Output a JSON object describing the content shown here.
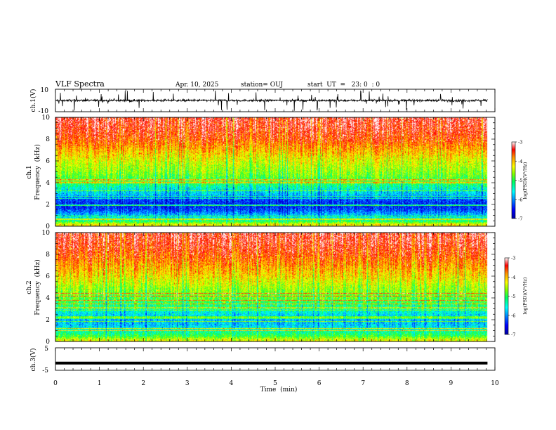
{
  "header": {
    "title": "VLF Spectra",
    "date": "Apr. 10, 2025",
    "station": "station= OUJ",
    "start": "start  UT  =   23: 0  : 0"
  },
  "chart_data": [
    {
      "type": "line",
      "name": "ch1-waveform",
      "ylabel": "ch.1(V)",
      "ylim": [
        -10,
        10
      ],
      "y_ticks": [
        "10",
        "-10"
      ],
      "baseline": 0,
      "x_range": [
        0,
        9.83
      ]
    },
    {
      "type": "heatmap",
      "name": "ch1-spectrogram",
      "ylabel_line1": "ch.1",
      "ylabel_line2": "Frequency  (kHz)",
      "ylim": [
        0,
        10
      ],
      "y_ticks": [
        "0",
        "2",
        "4",
        "6",
        "8",
        "10"
      ],
      "x_range": [
        0,
        9.83
      ],
      "approx_log_psd_by_freq_khz": [
        {
          "f": 0.2,
          "v": -4.3
        },
        {
          "f": 0.5,
          "v": -5.2
        },
        {
          "f": 1.0,
          "v": -5.8
        },
        {
          "f": 1.5,
          "v": -6.3
        },
        {
          "f": 2.0,
          "v": -6.5
        },
        {
          "f": 2.5,
          "v": -6.3
        },
        {
          "f": 3.0,
          "v": -5.8
        },
        {
          "f": 3.5,
          "v": -5.5
        },
        {
          "f": 4.0,
          "v": -5.1
        },
        {
          "f": 5.0,
          "v": -4.7
        },
        {
          "f": 6.0,
          "v": -4.4
        },
        {
          "f": 7.0,
          "v": -4.0
        },
        {
          "f": 8.0,
          "v": -3.6
        },
        {
          "f": 9.0,
          "v": -3.4
        },
        {
          "f": 10.0,
          "v": -3.3
        }
      ],
      "colorbar": {
        "label": "log(PSD)(V²/Hz)",
        "range": [
          -7,
          -3
        ],
        "ticks": [
          "-3",
          "-4",
          "-5",
          "-6",
          "-7"
        ]
      }
    },
    {
      "type": "heatmap",
      "name": "ch2-spectrogram",
      "ylabel_line1": "ch.2",
      "ylabel_line2": "Frequency  (kHz)",
      "ylim": [
        0,
        10
      ],
      "y_ticks": [
        "0",
        "2",
        "4",
        "6",
        "8",
        "10"
      ],
      "x_range": [
        0,
        9.83
      ],
      "approx_log_psd_by_freq_khz": [
        {
          "f": 0.2,
          "v": -4.4
        },
        {
          "f": 0.5,
          "v": -5.0
        },
        {
          "f": 1.0,
          "v": -5.4
        },
        {
          "f": 1.5,
          "v": -5.8
        },
        {
          "f": 2.0,
          "v": -5.9
        },
        {
          "f": 2.5,
          "v": -5.7
        },
        {
          "f": 3.0,
          "v": -5.4
        },
        {
          "f": 3.5,
          "v": -5.1
        },
        {
          "f": 4.0,
          "v": -4.9
        },
        {
          "f": 5.0,
          "v": -4.6
        },
        {
          "f": 6.0,
          "v": -4.2
        },
        {
          "f": 7.0,
          "v": -3.9
        },
        {
          "f": 8.0,
          "v": -3.6
        },
        {
          "f": 9.0,
          "v": -3.4
        },
        {
          "f": 10.0,
          "v": -3.3
        }
      ],
      "colorbar": {
        "label": "log(PSD)(V²/Hz)",
        "range": [
          -7,
          -3
        ],
        "ticks": [
          "-3",
          "-4",
          "-5",
          "-6",
          "-7"
        ]
      }
    },
    {
      "type": "line",
      "name": "ch3-waveform",
      "ylabel": "ch.3(V)",
      "ylim": [
        -5,
        5
      ],
      "y_ticks": [
        "5",
        "-5"
      ],
      "baseline": -1.8,
      "x_range": [
        0,
        9.83
      ]
    }
  ],
  "x_axis": {
    "label": "Time  (min)",
    "xlim": [
      0,
      10
    ],
    "ticks": [
      "0",
      "1",
      "2",
      "3",
      "4",
      "5",
      "6",
      "7",
      "8",
      "9",
      "10"
    ]
  },
  "colormap": [
    "#0000a0",
    "#0000ff",
    "#0090ff",
    "#00ffff",
    "#00ff60",
    "#80ff00",
    "#ffff00",
    "#ff9000",
    "#ff0000",
    "#ffffff"
  ]
}
